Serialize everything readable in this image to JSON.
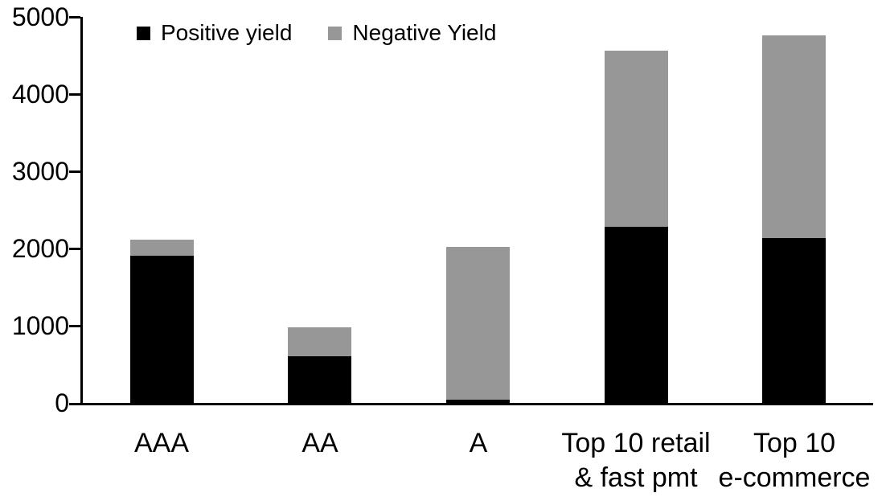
{
  "chart_data": {
    "type": "bar",
    "stacked": true,
    "title": "",
    "categories": [
      "AAA",
      "AA",
      "A",
      "Top 10 retail\n& fast pmt",
      "Top 10\ne-commerce"
    ],
    "series": [
      {
        "name": "Positive yield",
        "color": "#000000",
        "values": [
          1900,
          600,
          40,
          2280,
          2140
        ]
      },
      {
        "name": "Negative Yield",
        "color": "#979797",
        "values": [
          210,
          380,
          1980,
          2280,
          2620
        ]
      }
    ],
    "ylim": [
      0,
      5000
    ],
    "yticks": [
      0,
      1000,
      2000,
      3000,
      4000,
      5000
    ],
    "xlabel": "",
    "ylabel": "",
    "grid": false,
    "legend_position": "top",
    "axis_color": "#000000",
    "background_color": "#ffffff"
  }
}
